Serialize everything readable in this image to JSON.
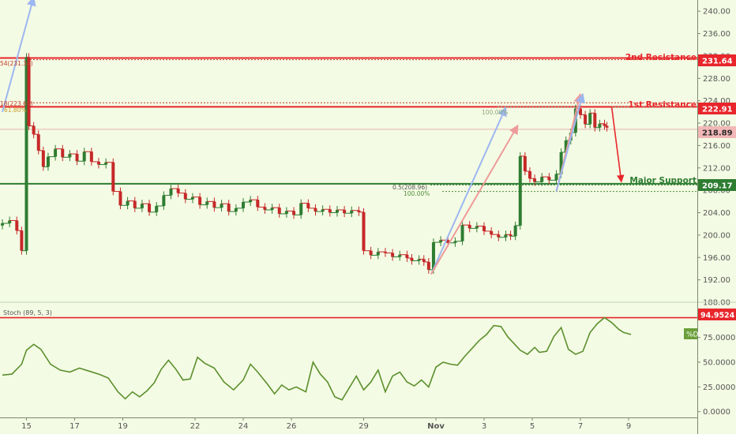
{
  "colors": {
    "background": "#f4fbe4",
    "resistance": "#e8262b",
    "support": "#2e7d32",
    "candle_up": "#2e7d32",
    "candle_down": "#c62828",
    "projection_blue": "#9db7f0",
    "projection_red": "#ee9a9a",
    "stoch_line": "#5b8f2d"
  },
  "chart_data": [
    {
      "type": "candlestick",
      "title": "",
      "ylim": [
        188,
        242
      ],
      "y_ticks": [
        "240.00",
        "236.00",
        "232.00",
        "228.00",
        "224.00",
        "220.00",
        "216.00",
        "212.00",
        "208.00",
        "204.00",
        "200.00",
        "196.00",
        "192.00",
        "188.00"
      ],
      "x_tick_labels": [
        "15",
        "17",
        "19",
        "22",
        "24",
        "26",
        "29",
        "Nov",
        "3",
        "5",
        "7",
        "9"
      ],
      "x_tick_dates": [
        15,
        17,
        19,
        22,
        24,
        26,
        29,
        32,
        34,
        36,
        38,
        40
      ],
      "date_note_visible": false,
      "levels": [
        {
          "label": "2nd Resistance",
          "price": 231.64,
          "tag": "231.64",
          "kind": "resistance"
        },
        {
          "label": "1st Resistance",
          "price": 222.91,
          "tag": "222.91",
          "kind": "resistance"
        },
        {
          "label": "Major Support",
          "price": 209.17,
          "tag": "209.17",
          "kind": "support"
        }
      ],
      "current_price": {
        "price": 218.89,
        "tag": "218.89"
      },
      "fib_labels": {
        "left_upper": "54(231.34)",
        "left_lower": "18(223.64)",
        "left_lower_pct": "61.80%",
        "right_top_pct": "100.00%",
        "right_mid": "0.5(208.96)",
        "right_low_pct": "100.00%"
      },
      "closes": [
        [
          14.0,
          202.1
        ],
        [
          14.3,
          202.6
        ],
        [
          14.6,
          200.8
        ],
        [
          14.8,
          197.2
        ],
        [
          15.0,
          231.8
        ],
        [
          15.1,
          219.5
        ],
        [
          15.3,
          218.0
        ],
        [
          15.5,
          215.1
        ],
        [
          15.7,
          212.2
        ],
        [
          15.9,
          214.0
        ],
        [
          16.2,
          215.4
        ],
        [
          16.5,
          213.9
        ],
        [
          16.8,
          214.5
        ],
        [
          17.1,
          213.2
        ],
        [
          17.4,
          214.9
        ],
        [
          17.7,
          213.1
        ],
        [
          18.0,
          212.6
        ],
        [
          18.3,
          213.0
        ],
        [
          18.6,
          207.8
        ],
        [
          18.9,
          205.3
        ],
        [
          19.2,
          206.1
        ],
        [
          19.5,
          204.8
        ],
        [
          19.8,
          205.6
        ],
        [
          20.1,
          204.1
        ],
        [
          20.4,
          205.2
        ],
        [
          20.7,
          207.1
        ],
        [
          21.0,
          208.3
        ],
        [
          21.3,
          207.5
        ],
        [
          21.6,
          206.4
        ],
        [
          21.9,
          206.8
        ],
        [
          22.2,
          205.4
        ],
        [
          22.5,
          206.0
        ],
        [
          22.8,
          204.9
        ],
        [
          23.1,
          205.6
        ],
        [
          23.4,
          204.2
        ],
        [
          23.7,
          204.8
        ],
        [
          24.0,
          205.9
        ],
        [
          24.3,
          206.3
        ],
        [
          24.6,
          205.0
        ],
        [
          24.9,
          204.5
        ],
        [
          25.2,
          204.9
        ],
        [
          25.5,
          203.8
        ],
        [
          25.8,
          204.3
        ],
        [
          26.1,
          203.6
        ],
        [
          26.4,
          205.7
        ],
        [
          26.7,
          204.8
        ],
        [
          27.0,
          204.2
        ],
        [
          27.3,
          204.6
        ],
        [
          27.6,
          204.0
        ],
        [
          27.9,
          204.5
        ],
        [
          28.2,
          203.9
        ],
        [
          28.5,
          204.4
        ],
        [
          28.8,
          204.1
        ],
        [
          29.0,
          197.2
        ],
        [
          29.3,
          196.4
        ],
        [
          29.6,
          197.0
        ],
        [
          29.9,
          196.8
        ],
        [
          30.2,
          196.1
        ],
        [
          30.5,
          196.5
        ],
        [
          30.8,
          195.9
        ],
        [
          31.0,
          195.4
        ],
        [
          31.3,
          195.7
        ],
        [
          31.5,
          195.2
        ],
        [
          31.7,
          193.8
        ],
        [
          31.9,
          198.7
        ],
        [
          32.2,
          199.1
        ],
        [
          32.5,
          198.6
        ],
        [
          32.8,
          198.9
        ],
        [
          33.1,
          201.8
        ],
        [
          33.4,
          201.2
        ],
        [
          33.7,
          201.6
        ],
        [
          34.0,
          200.7
        ],
        [
          34.3,
          200.1
        ],
        [
          34.6,
          199.6
        ],
        [
          34.9,
          200.1
        ],
        [
          35.1,
          199.8
        ],
        [
          35.3,
          201.7
        ],
        [
          35.5,
          214.1
        ],
        [
          35.7,
          211.4
        ],
        [
          35.9,
          210.1
        ],
        [
          36.1,
          209.5
        ],
        [
          36.4,
          210.4
        ],
        [
          36.7,
          209.8
        ],
        [
          37.0,
          210.9
        ],
        [
          37.2,
          214.8
        ],
        [
          37.4,
          216.9
        ],
        [
          37.6,
          218.3
        ],
        [
          37.8,
          222.6
        ],
        [
          38.0,
          221.5
        ],
        [
          38.2,
          219.8
        ],
        [
          38.4,
          221.8
        ],
        [
          38.6,
          219.2
        ],
        [
          38.8,
          219.9
        ],
        [
          39.0,
          219.5
        ],
        [
          39.1,
          219.2
        ]
      ],
      "arrows": [
        {
          "color": "blue",
          "from": [
            14.0,
            222.0
          ],
          "to": [
            15.3,
            242.5
          ]
        },
        {
          "color": "blue",
          "from": [
            31.8,
            193.0
          ],
          "to": [
            34.9,
            222.8
          ]
        },
        {
          "color": "red",
          "from": [
            31.8,
            193.0
          ],
          "to": [
            35.4,
            219.6
          ]
        },
        {
          "color": "red",
          "from": [
            37.0,
            207.8
          ],
          "to": [
            38.0,
            225.2
          ]
        },
        {
          "color": "blue",
          "from": [
            37.0,
            207.8
          ],
          "to": [
            38.1,
            225.2
          ]
        },
        {
          "color": "red",
          "from": [
            39.3,
            222.8
          ],
          "to": [
            39.7,
            209.5
          ]
        }
      ]
    },
    {
      "type": "line",
      "title": "Stoch (89, 5, 3)",
      "ylim": [
        -5,
        105
      ],
      "y_ticks": [
        "100.0000",
        "75.0000",
        "50.0000",
        "25.0000",
        "0.0000"
      ],
      "upper_level": {
        "value": 94.9524,
        "tag": "94.9524"
      },
      "legend_badge": "%D",
      "series": [
        {
          "name": "%D",
          "points": [
            [
              14.0,
              37
            ],
            [
              14.4,
              38
            ],
            [
              14.8,
              48
            ],
            [
              15.0,
              62
            ],
            [
              15.3,
              68
            ],
            [
              15.6,
              63
            ],
            [
              16.0,
              48
            ],
            [
              16.4,
              42
            ],
            [
              16.8,
              40
            ],
            [
              17.2,
              44
            ],
            [
              17.6,
              41
            ],
            [
              18.0,
              38
            ],
            [
              18.4,
              34
            ],
            [
              18.8,
              20
            ],
            [
              19.1,
              13
            ],
            [
              19.4,
              20
            ],
            [
              19.7,
              15
            ],
            [
              20.0,
              21
            ],
            [
              20.3,
              29
            ],
            [
              20.6,
              43
            ],
            [
              20.9,
              52
            ],
            [
              21.2,
              43
            ],
            [
              21.5,
              32
            ],
            [
              21.8,
              33
            ],
            [
              22.1,
              55
            ],
            [
              22.4,
              49
            ],
            [
              22.8,
              44
            ],
            [
              23.2,
              30
            ],
            [
              23.6,
              22
            ],
            [
              24.0,
              32
            ],
            [
              24.3,
              48
            ],
            [
              24.6,
              40
            ],
            [
              25.0,
              28
            ],
            [
              25.3,
              18
            ],
            [
              25.6,
              27
            ],
            [
              25.9,
              22
            ],
            [
              26.2,
              25
            ],
            [
              26.6,
              20
            ],
            [
              26.9,
              50
            ],
            [
              27.2,
              38
            ],
            [
              27.5,
              30
            ],
            [
              27.8,
              15
            ],
            [
              28.1,
              12
            ],
            [
              28.4,
              24
            ],
            [
              28.7,
              36
            ],
            [
              29.0,
              22
            ],
            [
              29.3,
              30
            ],
            [
              29.6,
              42
            ],
            [
              29.9,
              20
            ],
            [
              30.2,
              36
            ],
            [
              30.5,
              40
            ],
            [
              30.8,
              30
            ],
            [
              31.1,
              26
            ],
            [
              31.4,
              32
            ],
            [
              31.7,
              25
            ],
            [
              32.0,
              45
            ],
            [
              32.3,
              50
            ],
            [
              32.6,
              48
            ],
            [
              32.9,
              47
            ],
            [
              33.2,
              56
            ],
            [
              33.5,
              64
            ],
            [
              33.8,
              72
            ],
            [
              34.1,
              78
            ],
            [
              34.4,
              87
            ],
            [
              34.7,
              86
            ],
            [
              35.0,
              75
            ],
            [
              35.2,
              70
            ],
            [
              35.5,
              62
            ],
            [
              35.8,
              58
            ],
            [
              36.1,
              65
            ],
            [
              36.3,
              60
            ],
            [
              36.6,
              61
            ],
            [
              36.9,
              76
            ],
            [
              37.2,
              85
            ],
            [
              37.5,
              63
            ],
            [
              37.8,
              58
            ],
            [
              38.1,
              61
            ],
            [
              38.4,
              80
            ],
            [
              38.7,
              89
            ],
            [
              39.0,
              95
            ],
            [
              39.3,
              90
            ],
            [
              39.6,
              83
            ],
            [
              39.8,
              80
            ],
            [
              40.1,
              78
            ]
          ]
        }
      ]
    }
  ]
}
